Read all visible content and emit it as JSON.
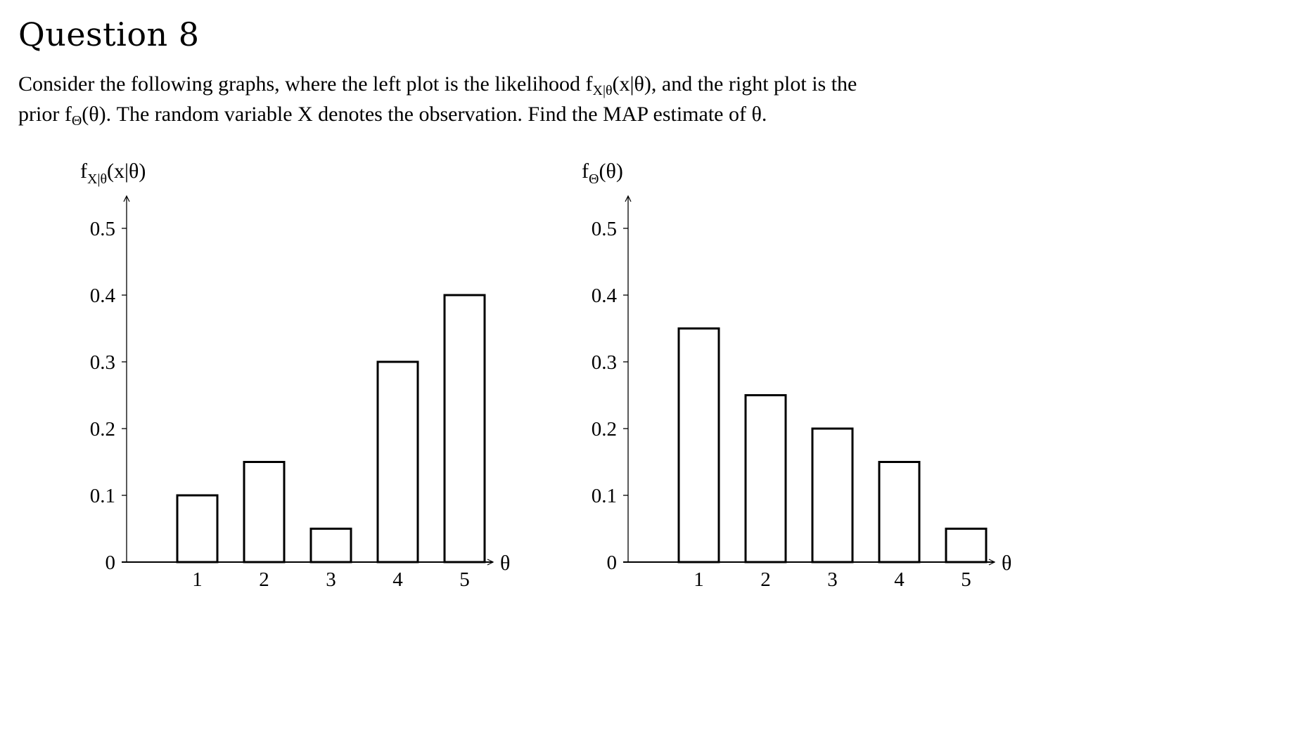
{
  "question": {
    "title": "Question 8",
    "text_line1_a": "Consider the following graphs, where the left plot is the likelihood f",
    "text_line1_sub": "X|θ",
    "text_line1_b": "(x|θ), and the right plot is the",
    "text_line2_a": "prior f",
    "text_line2_sub": "Θ",
    "text_line2_b": "(θ). The random variable X denotes the observation. Find the MAP estimate of θ."
  },
  "charts": {
    "left": {
      "ylabel_main": "f",
      "ylabel_sub": "X|θ",
      "ylabel_rest": "(x|θ)",
      "xlabel": "θ",
      "yticks": [
        "0",
        "0.1",
        "0.2",
        "0.3",
        "0.4",
        "0.5"
      ],
      "xticks": [
        "1",
        "2",
        "3",
        "4",
        "5"
      ]
    },
    "right": {
      "ylabel_main": "f",
      "ylabel_sub": "Θ",
      "ylabel_rest": "(θ)",
      "xlabel": "θ",
      "yticks": [
        "0",
        "0.1",
        "0.2",
        "0.3",
        "0.4",
        "0.5"
      ],
      "xticks": [
        "1",
        "2",
        "3",
        "4",
        "5"
      ]
    }
  },
  "chart_data": [
    {
      "type": "bar",
      "title": "",
      "xlabel": "θ",
      "ylabel": "f_{X|θ}(x|θ)",
      "categories": [
        "1",
        "2",
        "3",
        "4",
        "5"
      ],
      "values": [
        0.1,
        0.15,
        0.05,
        0.3,
        0.4
      ],
      "ylim": [
        0,
        0.5
      ],
      "grid": false,
      "legend": null,
      "bar_fill": "#ffffff",
      "bar_stroke": "#000000"
    },
    {
      "type": "bar",
      "title": "",
      "xlabel": "θ",
      "ylabel": "f_Θ(θ)",
      "categories": [
        "1",
        "2",
        "3",
        "4",
        "5"
      ],
      "values": [
        0.35,
        0.25,
        0.2,
        0.15,
        0.05
      ],
      "ylim": [
        0,
        0.5
      ],
      "grid": false,
      "legend": null,
      "bar_fill": "#ffffff",
      "bar_stroke": "#000000"
    }
  ]
}
